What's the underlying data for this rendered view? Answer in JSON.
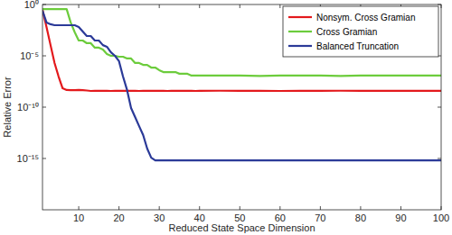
{
  "chart_data": {
    "type": "line",
    "x_label": "Reduced State Space Dimension",
    "y_label": "Relative Error",
    "log": "y",
    "grid": false,
    "legend": "upper right",
    "xlim": [
      1,
      100
    ],
    "xticks": [
      10,
      20,
      30,
      40,
      50,
      60,
      70,
      80,
      90,
      100
    ],
    "ylim": [
      1e-20,
      1
    ],
    "yticks": [
      {
        "value": 1e-15,
        "label": "10⁻¹⁵"
      },
      {
        "value": 1e-10,
        "label": "10⁻¹⁰"
      },
      {
        "value": 1e-05,
        "label": "10⁻⁵"
      },
      {
        "value": 1,
        "label": "10⁰"
      }
    ],
    "x": [
      1,
      2,
      3,
      4,
      5,
      6,
      7,
      8,
      9,
      10,
      11,
      12,
      13,
      14,
      15,
      16,
      17,
      18,
      19,
      20,
      21,
      22,
      23,
      24,
      25,
      26,
      27,
      28,
      29,
      30,
      31,
      32,
      33,
      34,
      35,
      36,
      37,
      38,
      39,
      40,
      45,
      50,
      55,
      60,
      65,
      70,
      75,
      80,
      85,
      90,
      95,
      100
    ],
    "series": [
      {
        "name": "Nonsym. Cross Gramian",
        "color": "#e3191c",
        "line_style": "solid",
        "values": [
          0.3,
          0.0065,
          0.00011,
          2e-06,
          9.5e-08,
          6.9e-09,
          4.7e-09,
          4.5e-09,
          4.6e-09,
          4.7e-09,
          4.5e-09,
          4.2e-09,
          3.8e-09,
          3.9e-09,
          3.9e-09,
          4e-09,
          3.9e-09,
          3.8e-09,
          3.9e-09,
          3.9e-09,
          3.9e-09,
          4e-09,
          3.9e-09,
          3.9e-09,
          3.8e-09,
          3.9e-09,
          3.9e-09,
          4e-09,
          3.9e-09,
          3.9e-09,
          3.9e-09,
          3.8e-09,
          3.9e-09,
          3.9e-09,
          4e-09,
          3.9e-09,
          3.9e-09,
          3.9e-09,
          3.8e-09,
          3.9e-09,
          4e-09,
          3.9e-09,
          3.9e-09,
          3.8e-09,
          3.9e-09,
          3.9e-09,
          4e-09,
          3.9e-09,
          3.9e-09,
          3.9e-09,
          3.9e-09,
          3.9e-09
        ]
      },
      {
        "name": "Cross Gramian",
        "color": "#6ccc3c",
        "line_style": "solid",
        "values": [
          0.36,
          0.36,
          0.36,
          0.36,
          0.36,
          0.36,
          0.36,
          0.018,
          0.002,
          0.00031,
          0.00031,
          0.00017,
          0.00017,
          6.2e-05,
          6.2e-05,
          4.1e-05,
          1.5e-05,
          1e-05,
          1e-05,
          8.2e-06,
          8.2e-06,
          5.5e-06,
          5.5e-06,
          2e-06,
          2e-06,
          1.3e-06,
          1.3e-06,
          7.2e-07,
          7.2e-07,
          4e-07,
          2.6e-07,
          2.6e-07,
          2.6e-07,
          2.6e-07,
          1.8e-07,
          1.8e-07,
          1.8e-07,
          1.2e-07,
          1.2e-07,
          1.2e-07,
          1.2e-07,
          1.2e-07,
          1.1e-07,
          1.2e-07,
          1.2e-07,
          1.2e-07,
          1.1e-07,
          1.2e-07,
          1.2e-07,
          1.2e-07,
          1.2e-07,
          1.2e-07
        ]
      },
      {
        "name": "Balanced Truncation",
        "color": "#2b3a98",
        "line_style": "solid",
        "values": [
          0.25,
          0.018,
          0.012,
          0.0096,
          0.0096,
          0.0096,
          0.0096,
          0.0096,
          0.0096,
          0.0065,
          0.0023,
          0.00085,
          0.00085,
          0.00031,
          0.00031,
          0.00011,
          7.6e-05,
          2.2e-05,
          1e-05,
          3e-06,
          9.5e-08,
          4.7e-09,
          8.1e-11,
          1.1e-11,
          1.4e-12,
          1.9e-13,
          9.2e-15,
          1.2e-15,
          6.6e-16,
          6.6e-16,
          6.6e-16,
          6.6e-16,
          6.6e-16,
          6.6e-16,
          6.6e-16,
          6.6e-16,
          6.6e-16,
          6.6e-16,
          6.6e-16,
          6.6e-16,
          6.6e-16,
          6.6e-16,
          6.6e-16,
          6.6e-16,
          6.6e-16,
          6.6e-16,
          6.6e-16,
          6.6e-16,
          6.6e-16,
          6.6e-16,
          6.6e-16,
          6.6e-16
        ]
      }
    ]
  }
}
